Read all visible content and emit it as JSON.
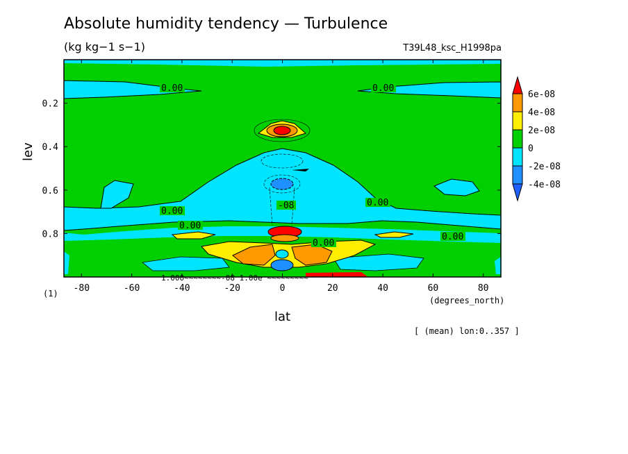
{
  "title": "Absolute humidity tendency — Turbulence",
  "units": "(kg kg−1 s−1)",
  "run_id": "T39L48_ksc_H1998pa",
  "footer": "[ (mean) lon:0..357 ]",
  "dim_marker": "(1)",
  "chart_data": {
    "type": "heatmap",
    "xlabel": "lat",
    "xunit": "(degrees_north)",
    "ylabel": "lev",
    "xlim": [
      -87,
      87
    ],
    "ylim": [
      1.0,
      0.0
    ],
    "xticks": [
      -80,
      -60,
      -40,
      -20,
      0,
      20,
      40,
      60,
      80
    ],
    "yticks": [
      0.2,
      0.4,
      0.6,
      0.8
    ],
    "colorbar": {
      "levels": [
        "6e-08",
        "4e-08",
        "2e-08",
        "0",
        "-2e-08",
        "-4e-08"
      ],
      "colors": [
        "#ff0000",
        "#ff9900",
        "#ffee00",
        "#00d000",
        "#00e5ff",
        "#1e90ff",
        "#2060ff"
      ]
    },
    "contour_labels": [
      "0.00",
      "0.00",
      "0.00",
      "0.00",
      "0.00",
      "0.00",
      "0.00",
      "-08"
    ],
    "bottom_labels": "1.000~~~~~~~~-08   1.00e   ~~~~~~~~~",
    "features": [
      {
        "lat": 0,
        "lev": 0.33,
        "value": "6e-08",
        "desc": "upper positive maximum"
      },
      {
        "lat": 0,
        "lev": 0.56,
        "value": "-4e-08",
        "desc": "negative minimum"
      },
      {
        "lat": 0,
        "lev": 0.78,
        "value": "6e-08",
        "desc": "lower positive maximum"
      },
      {
        "lat": 0,
        "lev": 0.93,
        "value": "-4e-08",
        "desc": "near-surface negative"
      }
    ]
  }
}
